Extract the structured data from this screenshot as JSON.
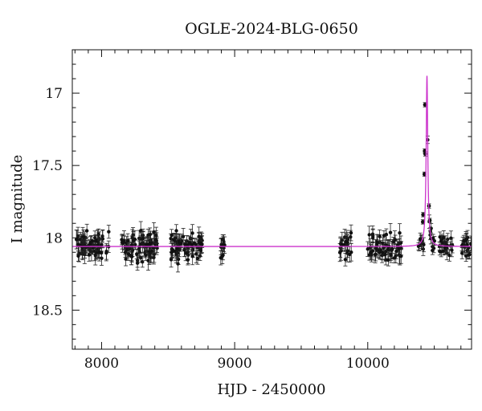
{
  "chart_data": {
    "type": "scatter",
    "title": "OGLE-2024-BLG-0650",
    "xlabel": "HJD - 2450000",
    "ylabel": "I magnitude",
    "xlim": [
      7780,
      10780
    ],
    "ylim": [
      18.77,
      16.7
    ],
    "y_inverted": true,
    "x_ticks_labeled": [
      8000,
      9000,
      10000
    ],
    "x_tick_labels": [
      "8000",
      "9000",
      "10000"
    ],
    "y_ticks_labeled": [
      17,
      17.5,
      18,
      18.5
    ],
    "y_tick_labels": [
      "17",
      "17.5",
      "18",
      "18.5"
    ],
    "grid": false,
    "colors": {
      "data": "#111111",
      "model": "#cc33cc"
    },
    "baseline_mag": 18.06,
    "model": {
      "t0": 10445,
      "baseline": 18.06,
      "peak_mag": 16.88,
      "color": "#cc33cc"
    },
    "series": [
      {
        "kind": "data",
        "color": "#111111",
        "segments": [
          {
            "start": 7800,
            "end": 8060,
            "n": 70,
            "mean": 18.06,
            "scatter": 0.045,
            "err": 0.045
          },
          {
            "start": 8150,
            "end": 8420,
            "n": 80,
            "mean": 18.06,
            "scatter": 0.045,
            "err": 0.045
          },
          {
            "start": 8520,
            "end": 8760,
            "n": 70,
            "mean": 18.06,
            "scatter": 0.045,
            "err": 0.045
          },
          {
            "start": 8895,
            "end": 8925,
            "n": 10,
            "mean": 18.06,
            "scatter": 0.04,
            "err": 0.04
          },
          {
            "start": 9790,
            "end": 9880,
            "n": 20,
            "mean": 18.06,
            "scatter": 0.045,
            "err": 0.045
          },
          {
            "start": 9990,
            "end": 10260,
            "n": 60,
            "mean": 18.06,
            "scatter": 0.045,
            "err": 0.045
          },
          {
            "start": 10370,
            "end": 10640,
            "n": 45,
            "mean": 18.06,
            "scatter": 0.035,
            "err": 0.035,
            "follow_model": true
          },
          {
            "start": 10700,
            "end": 10780,
            "n": 18,
            "mean": 18.06,
            "scatter": 0.04,
            "err": 0.04
          }
        ],
        "peak_points": [
          {
            "x": 10430,
            "y": 17.08
          },
          {
            "x": 10428,
            "y": 17.4
          },
          {
            "x": 10432,
            "y": 17.42
          },
          {
            "x": 10426,
            "y": 17.56
          },
          {
            "x": 10460,
            "y": 17.78
          },
          {
            "x": 10416,
            "y": 17.84
          },
          {
            "x": 10466,
            "y": 17.88
          },
          {
            "x": 10414,
            "y": 17.89
          }
        ]
      }
    ]
  }
}
